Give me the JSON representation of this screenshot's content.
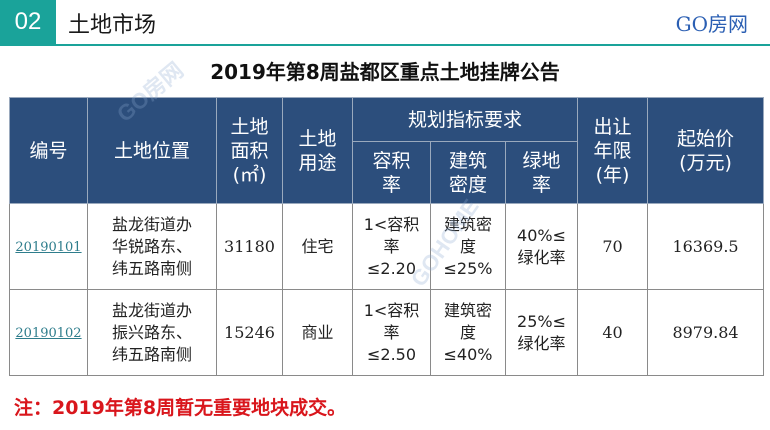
{
  "header": {
    "section_number": "02",
    "section_title": "土地市场",
    "brand": "GO房网"
  },
  "document": {
    "title": "2019年第8周盐都区重点土地挂牌公告"
  },
  "table": {
    "headers": {
      "lot_number": "编号",
      "location": "土地位置",
      "area": "土地\n面积\n(㎡)",
      "use": "土地\n用途",
      "planning_group": "规划指标要求",
      "plot_ratio": "容积\n率",
      "building_density": "建筑\n密度",
      "green_ratio": "绿地\n率",
      "term": "出让\n年限\n(年)",
      "starting_price": "起始价\n(万元)"
    },
    "rows": [
      {
        "lot_number": "20190101",
        "location": "盐龙街道办\n华锐路东、\n纬五路南侧",
        "area": "31180",
        "use": "住宅",
        "plot_ratio": "1<容积\n率\n≤2.20",
        "building_density": "建筑密\n度\n≤25%",
        "green_ratio": "40%≤\n绿化率",
        "term": "70",
        "starting_price": "16369.5"
      },
      {
        "lot_number": "20190102",
        "location": "盐龙街道办\n振兴路东、\n纬五路南侧",
        "area": "15246",
        "use": "商业",
        "plot_ratio": "1<容积\n率\n≤2.50",
        "building_density": "建筑密\n度\n≤40%",
        "green_ratio": "25%≤\n绿化率",
        "term": "40",
        "starting_price": "8979.84"
      }
    ]
  },
  "note": "注：2019年第8周暂无重要地块成交。",
  "colors": {
    "badge": "#1aa39a",
    "table_header": "#2c4e7c",
    "brand": "#2b5fb3",
    "note": "#d9161c",
    "link": "#2e7d8c"
  },
  "watermarks": [
    "GO房网",
    "GOHOME"
  ]
}
